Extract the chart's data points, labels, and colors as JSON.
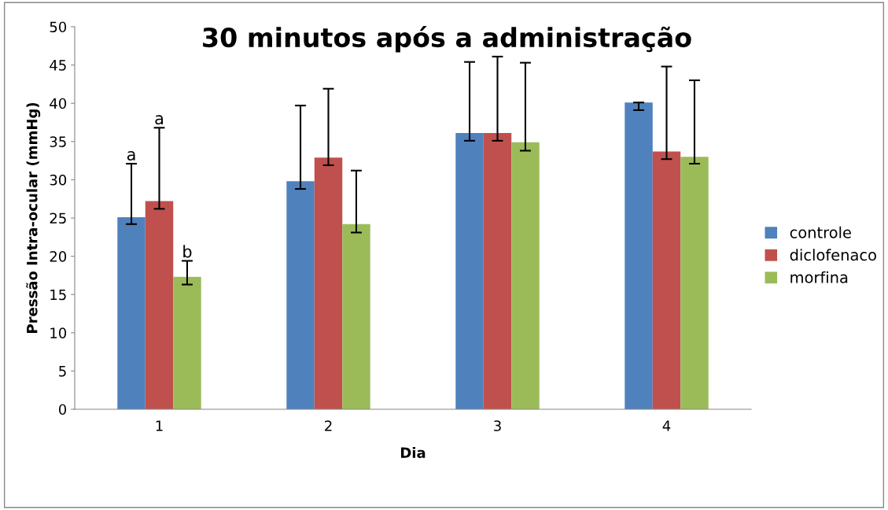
{
  "chart_data": {
    "type": "bar",
    "title": "30 minutos após a administração",
    "xlabel": "Dia",
    "ylabel": "Pressão Intra-ocular (mmHg)",
    "categories": [
      "1",
      "2",
      "3",
      "4"
    ],
    "series": [
      {
        "name": "controle",
        "color": "#4f81bd",
        "values": [
          25.1,
          29.8,
          36.1,
          40.1
        ],
        "errors": [
          [
            24.2,
            32.1
          ],
          [
            28.8,
            39.7
          ],
          [
            35.1,
            45.4
          ],
          [
            39.1,
            40.1
          ]
        ]
      },
      {
        "name": "diclofenaco",
        "color": "#c0504d",
        "values": [
          27.2,
          32.9,
          36.1,
          33.7
        ],
        "errors": [
          [
            26.2,
            36.8
          ],
          [
            31.9,
            41.9
          ],
          [
            35.1,
            46.1
          ],
          [
            32.7,
            44.8
          ]
        ]
      },
      {
        "name": "morfina",
        "color": "#9bbb59",
        "values": [
          17.3,
          24.2,
          34.9,
          33.0
        ],
        "errors": [
          [
            16.3,
            19.4
          ],
          [
            23.1,
            31.2
          ],
          [
            33.8,
            45.3
          ],
          [
            32.1,
            43.0
          ]
        ]
      }
    ],
    "annotations": [
      "a",
      "a",
      "b"
    ],
    "ylim": [
      0,
      50
    ],
    "yticks": [
      0,
      5,
      10,
      15,
      20,
      25,
      30,
      35,
      40,
      45,
      50
    ],
    "grid": false,
    "legend": "right"
  }
}
